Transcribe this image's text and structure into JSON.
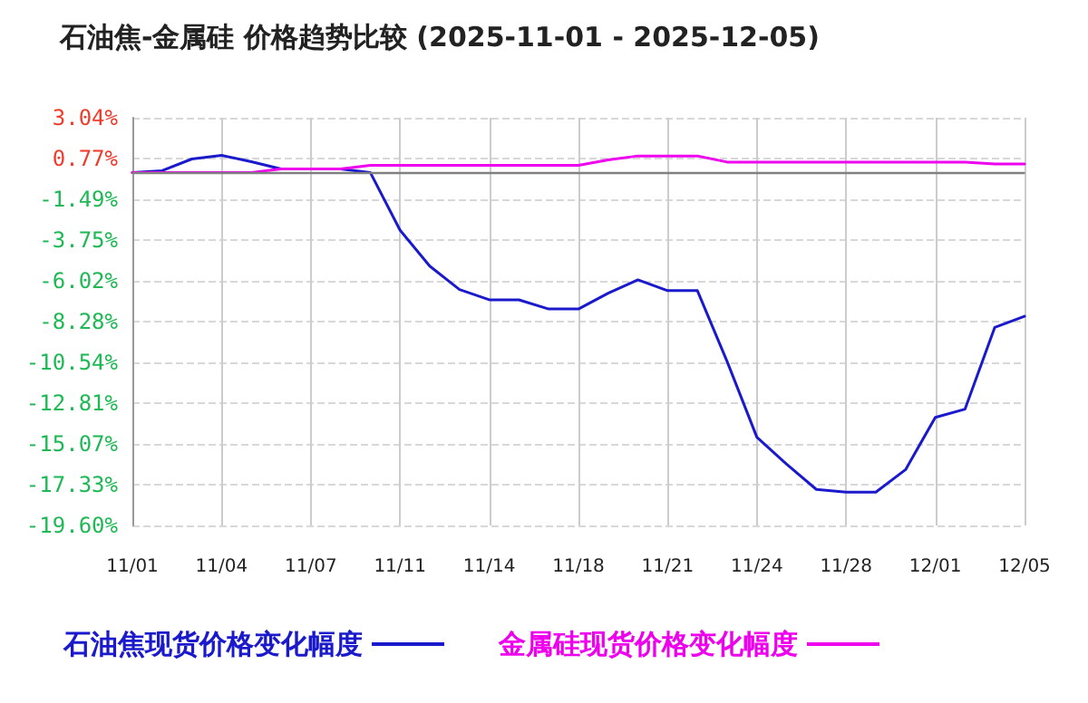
{
  "chart_data": {
    "type": "line",
    "title": "石油焦-金属硅 价格趋势比较 (2025-11-01 - 2025-12-05)",
    "categories": [
      "11/01",
      null,
      null,
      "11/04",
      null,
      null,
      "11/07",
      null,
      null,
      "11/11",
      null,
      null,
      "11/14",
      null,
      null,
      "11/18",
      null,
      null,
      "11/21",
      null,
      null,
      "11/24",
      null,
      null,
      "11/28",
      null,
      null,
      "12/01",
      null,
      null,
      "12/05"
    ],
    "series": [
      {
        "name": "石油焦现货价格变化幅度",
        "color": "#1a1acc",
        "values": [
          0,
          0.1,
          0.75,
          0.95,
          0.6,
          0.2,
          0.2,
          0.2,
          0,
          -3.2,
          -5.2,
          -6.5,
          -7.07,
          -7.07,
          -7.58,
          -7.58,
          -6.7,
          -5.96,
          -6.56,
          -6.56,
          -10.5,
          -14.7,
          -16.2,
          -17.6,
          -17.75,
          -17.75,
          -16.5,
          -13.6,
          -13.14,
          -8.6,
          -7.98
        ]
      },
      {
        "name": "金属硅现货价格变化幅度",
        "color": "#ee00ee",
        "values": [
          0,
          0,
          0,
          0,
          0,
          0.2,
          0.2,
          0.2,
          0.4,
          0.4,
          0.4,
          0.4,
          0.4,
          0.4,
          0.4,
          0.4,
          0.7,
          0.92,
          0.92,
          0.92,
          0.58,
          0.58,
          0.58,
          0.58,
          0.58,
          0.58,
          0.58,
          0.58,
          0.58,
          0.48,
          0.48
        ]
      }
    ],
    "ylim": [
      -19.6,
      3.04
    ],
    "yticks": [
      {
        "value": 3.04,
        "label": "3.04%"
      },
      {
        "value": 0.77,
        "label": "0.77%"
      },
      {
        "value": -1.49,
        "label": "-1.49%"
      },
      {
        "value": -3.75,
        "label": "-3.75%"
      },
      {
        "value": -6.02,
        "label": "-6.02%"
      },
      {
        "value": -8.28,
        "label": "-8.28%"
      },
      {
        "value": -10.54,
        "label": "-10.54%"
      },
      {
        "value": -12.81,
        "label": "-12.81%"
      },
      {
        "value": -15.07,
        "label": "-15.07%"
      },
      {
        "value": -17.33,
        "label": "-17.33%"
      },
      {
        "value": -19.6,
        "label": "-19.60%"
      }
    ],
    "ref_lines": [
      {
        "axis": "y",
        "value": 0,
        "label": null,
        "color": "#808080"
      }
    ],
    "grid": true,
    "legend": "bottom",
    "marker": "none",
    "line_style": "solid"
  }
}
